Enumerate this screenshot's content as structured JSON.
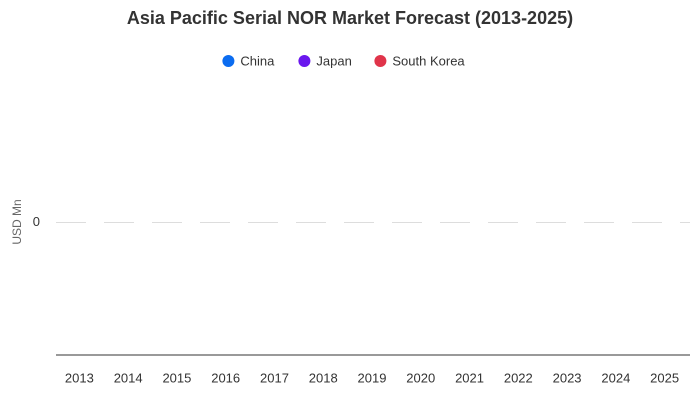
{
  "chart_data": {
    "type": "bar",
    "stacked": true,
    "title": "Asia Pacific Serial NOR Market Forecast (2013-2025)",
    "y_label": "USD Mn",
    "categories": [
      "2013",
      "2014",
      "2015",
      "2016",
      "2017",
      "2018",
      "2019",
      "2020",
      "2021",
      "2022",
      "2023",
      "2024",
      "2025"
    ],
    "series": [
      {
        "name": "China",
        "color": "#0b6cf0",
        "values": [
          0,
          0,
          0,
          0,
          0,
          0,
          0,
          0,
          0,
          0,
          0,
          0,
          0
        ]
      },
      {
        "name": "Japan",
        "color": "#6a17ee",
        "values": [
          0,
          0,
          0,
          0,
          0,
          0,
          0,
          0,
          0,
          0,
          0,
          0,
          0
        ]
      },
      {
        "name": "South Korea",
        "color": "#e0344a",
        "values": [
          0,
          0,
          0,
          0,
          0,
          0,
          0,
          0,
          0,
          0,
          0,
          0,
          0
        ]
      }
    ],
    "ylim": [
      -1,
      1
    ],
    "yticks": [
      0
    ],
    "grid": true,
    "legend": "top"
  }
}
